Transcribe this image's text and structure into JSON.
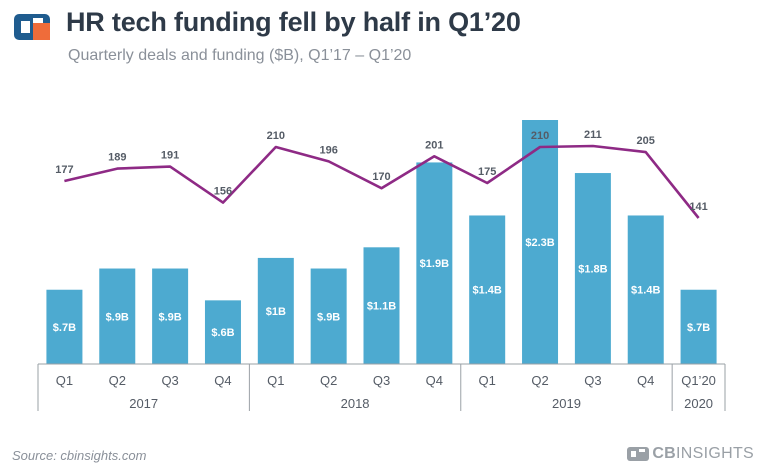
{
  "header": {
    "title": "HR tech funding fell by half in Q1’20",
    "subtitle": "Quarterly deals and funding ($B), Q1’17 – Q1’20"
  },
  "footer": {
    "source": "Source: cbinsights.com",
    "brand_prefix": "CB",
    "brand_suffix": "INSIGHTS"
  },
  "colors": {
    "bar": "#4daad0",
    "line": "#8e2a85",
    "title": "#2e3a48",
    "muted": "#8a9099",
    "axis": "#9aa0a6",
    "logo_blue": "#1f5c8f",
    "logo_orange": "#ef6c3a"
  },
  "chart_data": {
    "type": "bar",
    "title": "HR tech funding fell by half in Q1’20",
    "subtitle": "Quarterly deals and funding ($B), Q1’17 – Q1’20",
    "categories": [
      "Q1",
      "Q2",
      "Q3",
      "Q4",
      "Q1",
      "Q2",
      "Q3",
      "Q4",
      "Q1",
      "Q2",
      "Q3",
      "Q4",
      "Q1’20"
    ],
    "groups": [
      {
        "label": "2017",
        "count": 4
      },
      {
        "label": "2018",
        "count": 4
      },
      {
        "label": "2019",
        "count": 4
      },
      {
        "label": "2020",
        "count": 1
      }
    ],
    "series": [
      {
        "name": "Funding ($B)",
        "type": "bar",
        "values": [
          0.7,
          0.9,
          0.9,
          0.6,
          1.0,
          0.9,
          1.1,
          1.9,
          1.4,
          2.3,
          1.8,
          1.4,
          0.7
        ],
        "labels": [
          "$.7B",
          "$.9B",
          "$.9B",
          "$.6B",
          "$1B",
          "$.9B",
          "$1.1B",
          "$1.9B",
          "$1.4B",
          "$2.3B",
          "$1.8B",
          "$1.4B",
          "$.7B"
        ]
      },
      {
        "name": "Deals",
        "type": "line",
        "values": [
          177,
          189,
          191,
          156,
          210,
          196,
          170,
          201,
          175,
          210,
          211,
          205,
          141
        ],
        "labels": [
          "177",
          "189",
          "191",
          "156",
          "210",
          "196",
          "170",
          "201",
          "175",
          "210",
          "211",
          "205",
          "141"
        ]
      }
    ],
    "ylim_funding": [
      0,
      2.5
    ],
    "ylim_deals": [
      0,
      230
    ],
    "grid": false,
    "legend": "none"
  }
}
